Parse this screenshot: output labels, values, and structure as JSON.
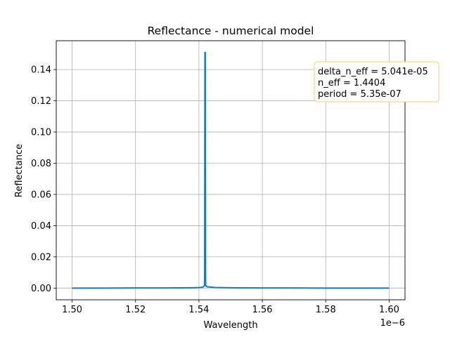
{
  "chart_data": {
    "type": "line",
    "title": "Reflectance - numerical model",
    "xlabel": "Wavelength",
    "ylabel": "Reflectance",
    "x_offset_label": "1e−6",
    "xlim": [
      1.495,
      1.605
    ],
    "ylim": [
      -0.0075,
      0.1585
    ],
    "grid": true,
    "x_ticks": [
      1.5,
      1.52,
      1.54,
      1.56,
      1.58,
      1.6
    ],
    "x_tick_labels": [
      "1.50",
      "1.52",
      "1.54",
      "1.56",
      "1.58",
      "1.60"
    ],
    "y_ticks": [
      0.0,
      0.02,
      0.04,
      0.06,
      0.08,
      0.1,
      0.12,
      0.14
    ],
    "y_tick_labels": [
      "0.00",
      "0.02",
      "0.04",
      "0.06",
      "0.08",
      "0.10",
      "0.12",
      "0.14"
    ],
    "series": [
      {
        "color": "#1f77b4",
        "x": [
          1.5,
          1.51,
          1.52,
          1.53,
          1.538,
          1.54,
          1.5412,
          1.5416,
          1.5418,
          1.5419,
          1.542,
          1.5421,
          1.5422,
          1.5424,
          1.5428,
          1.545,
          1.55,
          1.56,
          1.57,
          1.58,
          1.59,
          1.6
        ],
        "y": [
          0.0,
          0.0,
          0.0001,
          0.0001,
          0.0002,
          0.0003,
          0.0006,
          0.0012,
          0.002,
          0.151,
          0.151,
          0.003,
          0.0015,
          0.001,
          0.0008,
          0.0004,
          0.0002,
          0.0001,
          0.0001,
          0.0,
          0.0,
          0.0
        ]
      }
    ],
    "annotation": {
      "lines": [
        "delta_n_eff = 5.041e-05",
        "n_eff = 1.4404",
        "period = 5.35e-07"
      ],
      "border_color": "#f7c97c"
    }
  }
}
